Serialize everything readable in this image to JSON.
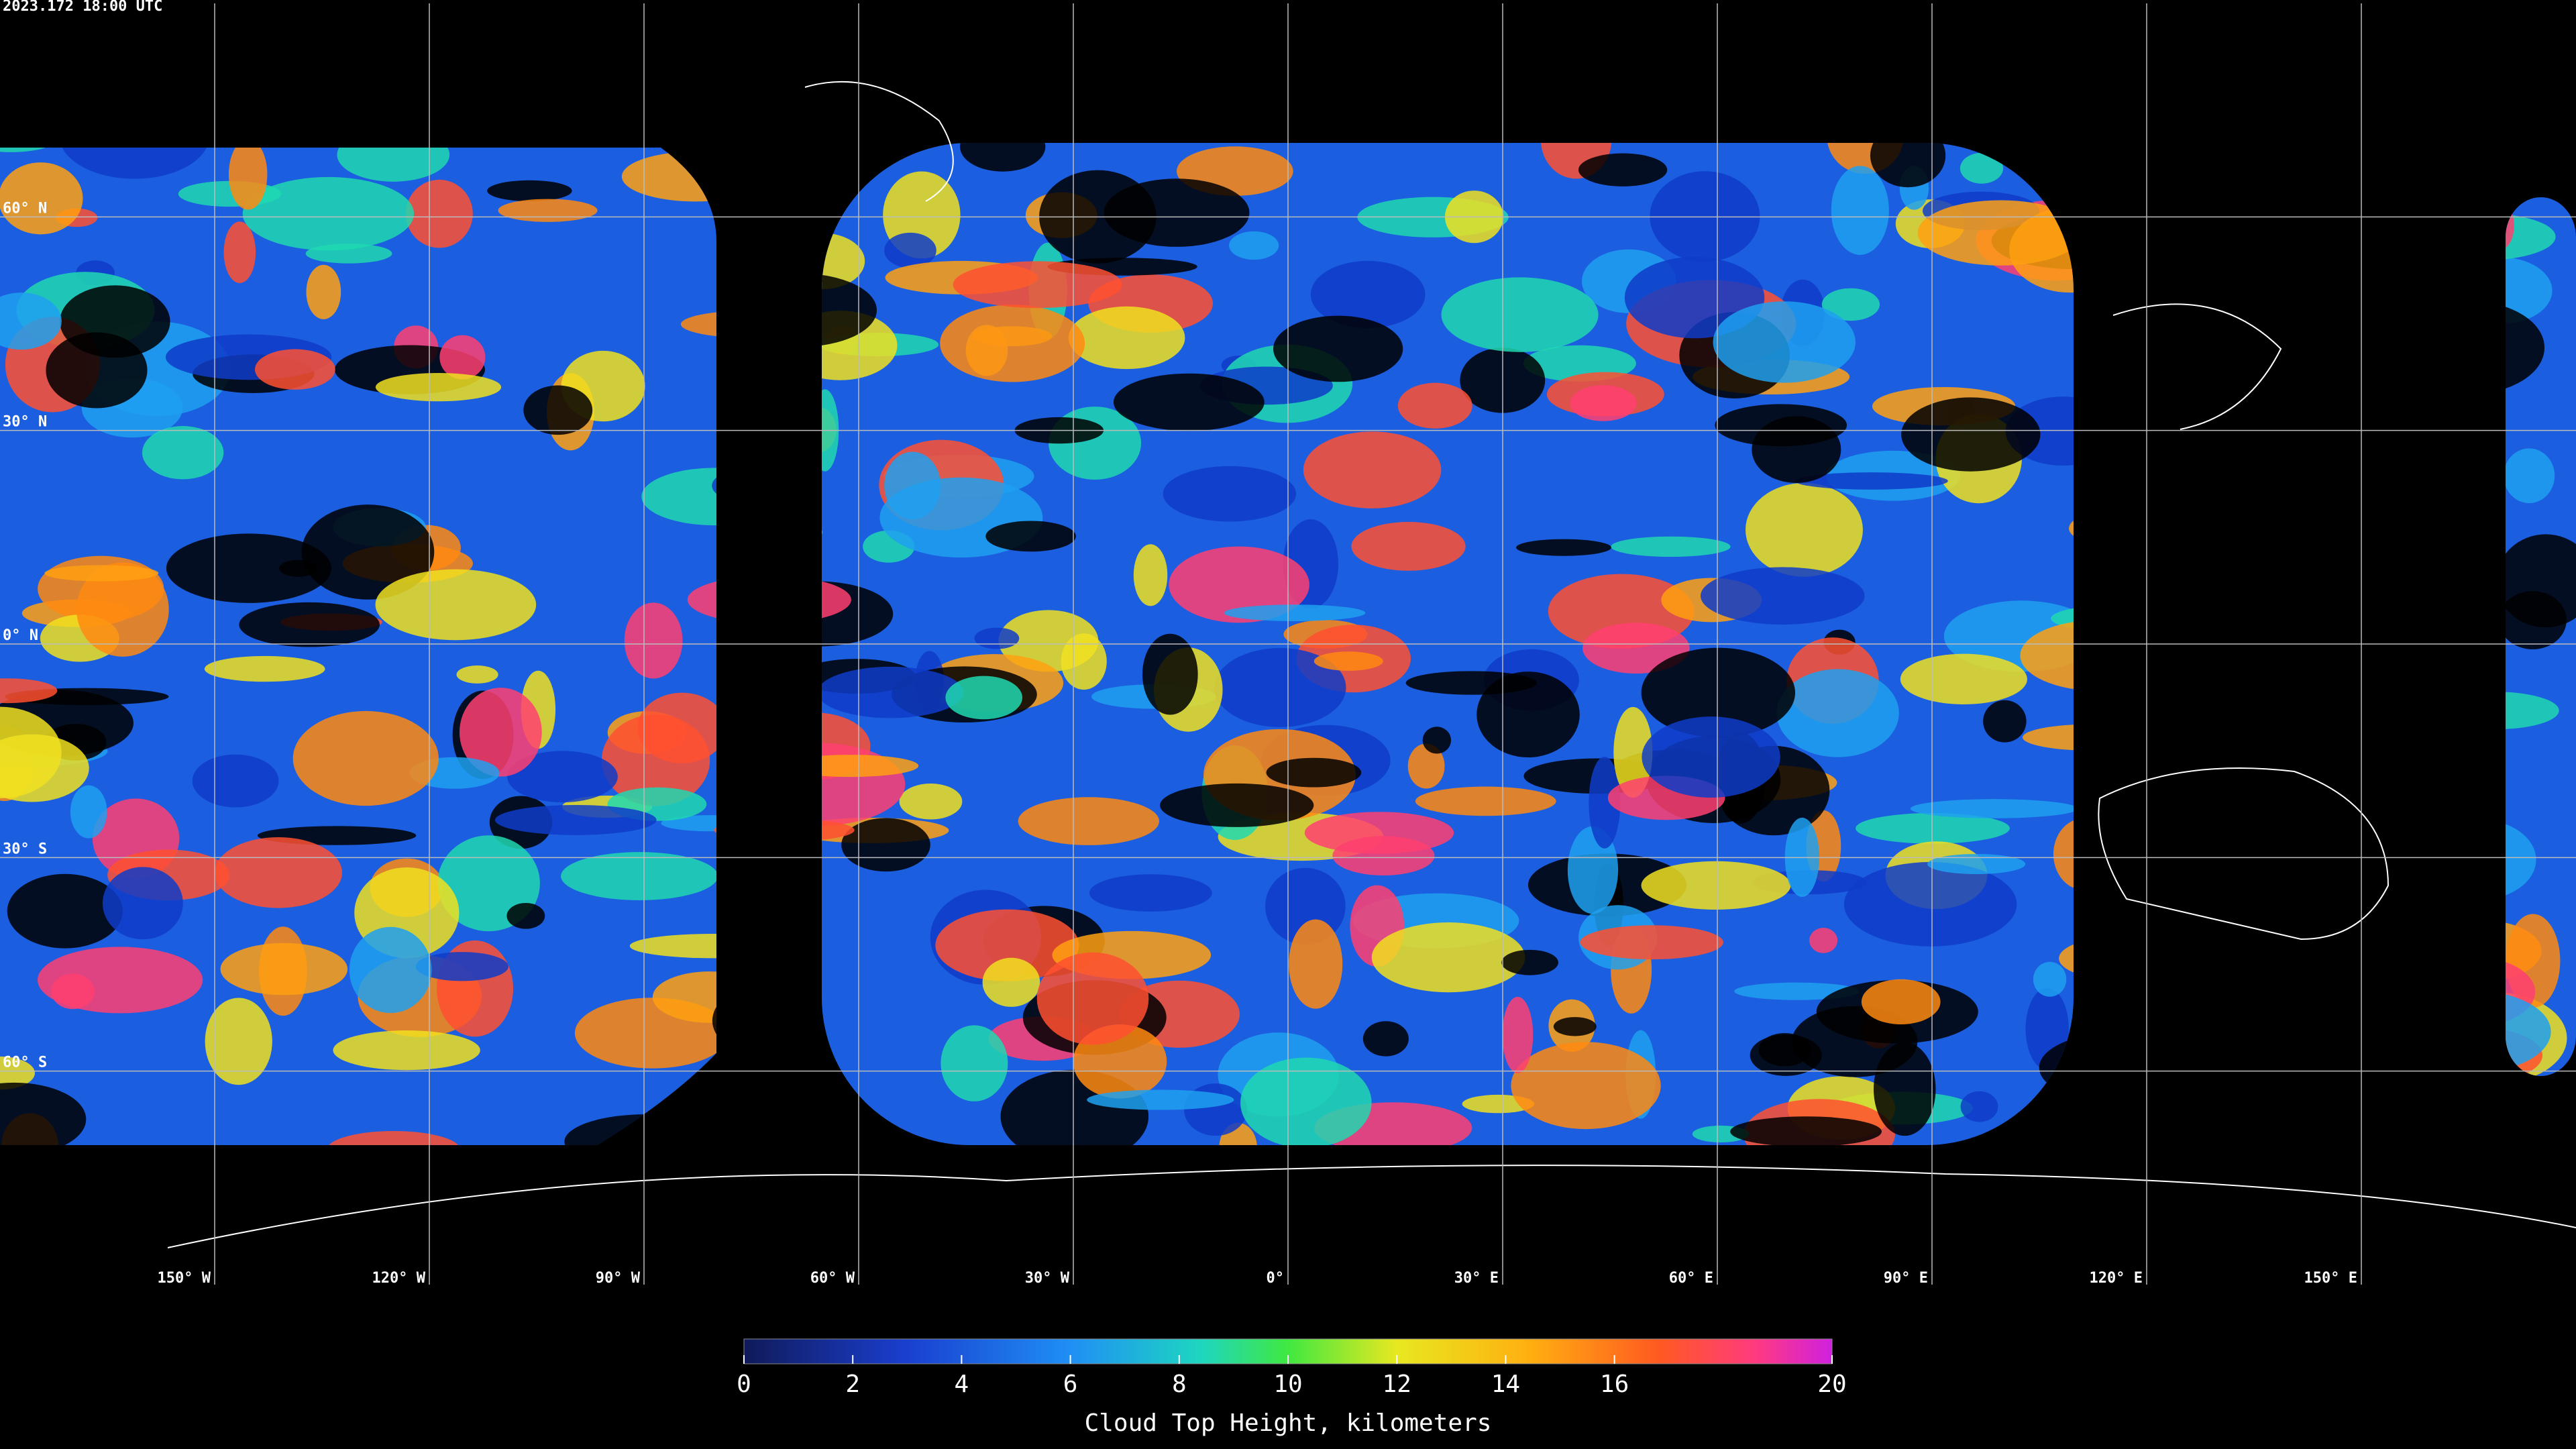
{
  "timestamp": "2023.172 18:00 UTC",
  "map": {
    "xlim": [
      -180,
      180
    ],
    "ylim": [
      -90,
      90
    ],
    "lon_ticks": [
      {
        "value": -150,
        "label": "150° W"
      },
      {
        "value": -120,
        "label": "120° W"
      },
      {
        "value": -90,
        "label": "90° W"
      },
      {
        "value": -60,
        "label": "60° W"
      },
      {
        "value": -30,
        "label": "30° W"
      },
      {
        "value": 0,
        "label": "0°"
      },
      {
        "value": 30,
        "label": "30° E"
      },
      {
        "value": 60,
        "label": "60° E"
      },
      {
        "value": 90,
        "label": "90° E"
      },
      {
        "value": 120,
        "label": "120° E"
      },
      {
        "value": 150,
        "label": "150° E"
      }
    ],
    "lat_ticks": [
      {
        "value": 60,
        "label": "60° N"
      },
      {
        "value": 30,
        "label": "30° N"
      },
      {
        "value": 0,
        "label": "0° N"
      },
      {
        "value": -30,
        "label": "30° S"
      },
      {
        "value": -60,
        "label": "60° S"
      }
    ]
  },
  "colorbar": {
    "title": "Cloud Top Height, kilometers",
    "lim": [
      0,
      20
    ],
    "ticks": [
      0,
      2,
      4,
      6,
      8,
      10,
      12,
      14,
      16,
      20
    ]
  }
}
